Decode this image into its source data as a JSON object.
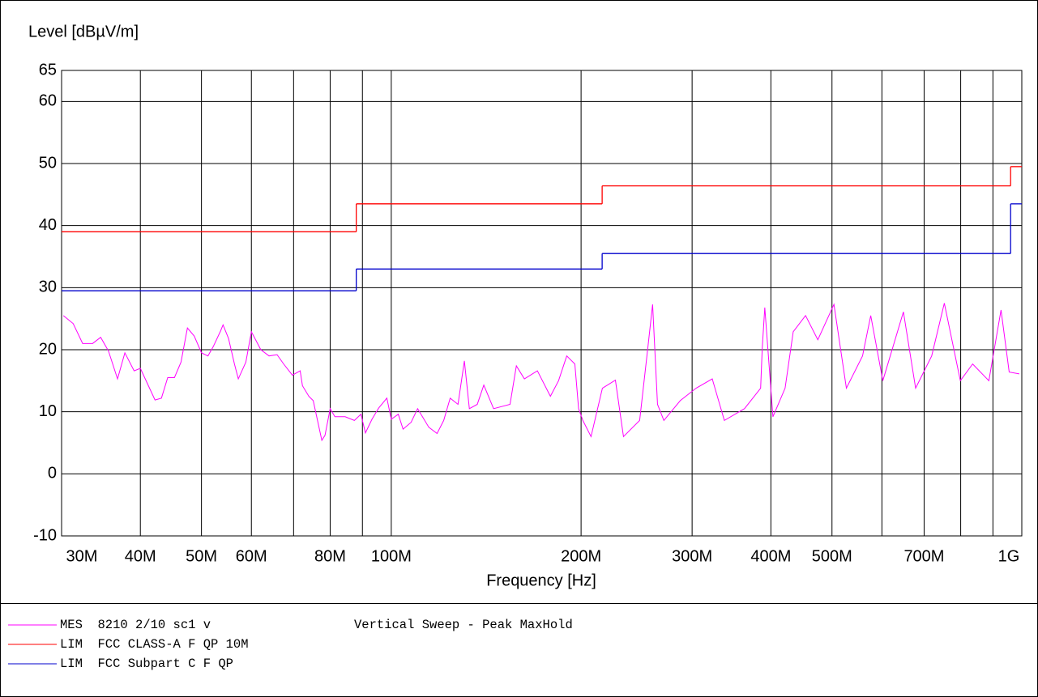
{
  "chart_data": {
    "type": "line",
    "ylabel": "Level [dBµV/m]",
    "xlabel": "Frequency [Hz]",
    "xscale": "log",
    "xlim": [
      30000000,
      1000000000
    ],
    "ylim": [
      -10,
      65
    ],
    "yticks": [
      -10,
      0,
      10,
      20,
      30,
      40,
      50,
      60,
      65
    ],
    "xticks": [
      {
        "value": 30000000,
        "label": "30M"
      },
      {
        "value": 40000000,
        "label": "40M"
      },
      {
        "value": 50000000,
        "label": "50M"
      },
      {
        "value": 60000000,
        "label": "60M"
      },
      {
        "value": 80000000,
        "label": "80M"
      },
      {
        "value": 100000000,
        "label": "100M"
      },
      {
        "value": 200000000,
        "label": "200M"
      },
      {
        "value": 300000000,
        "label": "300M"
      },
      {
        "value": 400000000,
        "label": "400M"
      },
      {
        "value": 500000000,
        "label": "500M"
      },
      {
        "value": 700000000,
        "label": "700M"
      },
      {
        "value": 1000000000,
        "label": "1G"
      }
    ],
    "xgrid": [
      70000000,
      90000000,
      600000000,
      800000000,
      900000000
    ],
    "grid": true,
    "note": "Vertical Sweep - Peak MaxHold",
    "series": [
      {
        "name": "MES  8210 2/10 sc1 v",
        "color": "#ff00ff",
        "style": "line",
        "x": [
          30200000.0,
          31300000.0,
          32400000.0,
          33600000.0,
          34600000.0,
          35600000.0,
          36800000.0,
          37800000.0,
          39100000.0,
          40000000.0,
          42200000.0,
          43200000.0,
          44200000.0,
          45300000.0,
          46400000.0,
          47500000.0,
          48700000.0,
          50000000.0,
          51200000.0,
          52200000.0,
          53600000.0,
          54100000.0,
          55200000.0,
          56400000.0,
          57200000.0,
          58800000.0,
          60000000.0,
          62100000.0,
          64000000.0,
          65900000.0,
          67500000.0,
          69700000.0,
          71700000.0,
          72300000.0,
          74000000.0,
          75200000.0,
          77600000.0,
          78500000.0,
          80000000.0,
          81400000.0,
          84500000.0,
          87400000.0,
          89500000.0,
          91000000.0,
          93200000.0,
          95500000.0,
          98400000.0,
          100000000.0,
          102600000.0,
          104400000.0,
          107500000.0,
          110100000.0,
          114700000.0,
          118200000.0,
          121100000.0,
          124000000.0,
          127600000.0,
          130600000.0,
          133000000.0,
          136900000.0,
          140200000.0,
          145300000.0,
          154300000.0,
          157900000.0,
          162600000.0,
          170500000.0,
          178800000.0,
          184200000.0,
          189800000.0,
          195500000.0,
          198200000.0,
          201300000.0,
          207400000.0,
          216200000.0,
          226700000.0,
          233500000.0,
          247700000.0,
          255200000.0,
          259700000.0,
          264400000.0,
          270600000.0,
          287300000.0,
          304400000.0,
          322900000.0,
          337500000.0,
          363200000.0,
          385300000.0,
          387600000.0,
          391200000.0,
          403000000.0,
          421300000.0,
          434000000.0,
          454000000.0,
          474800000.0,
          503600000.0,
          527000000.0,
          559000000.0,
          576000000.0,
          602000000.0,
          649000000.0,
          678600000.0,
          719600000.0,
          753600000.0,
          799000000.0,
          835700000.0,
          886700000.0,
          927000000.0,
          955000000.0,
          991000000.0
        ],
        "values": [
          25.5,
          24.2,
          21,
          21,
          22,
          19.8,
          15.3,
          19.5,
          16.6,
          17,
          11.9,
          12.2,
          15.5,
          15.5,
          18,
          23.5,
          22.2,
          19.5,
          19,
          20.5,
          23,
          24,
          21.8,
          17.7,
          15.3,
          18,
          22.9,
          20,
          19,
          19.2,
          17.7,
          15.9,
          16.6,
          14.2,
          12.5,
          11.8,
          5.4,
          6.2,
          10.5,
          9.2,
          9.2,
          8.6,
          9.6,
          6.6,
          8.8,
          10.6,
          12.2,
          8.8,
          9.6,
          7.2,
          8.3,
          10.5,
          7.5,
          6.5,
          8.6,
          12.2,
          11.2,
          18.2,
          10.5,
          11.2,
          14.3,
          10.5,
          11.2,
          17.4,
          15.3,
          16.6,
          12.5,
          15,
          19,
          17.7,
          10.5,
          8.6,
          6,
          13.8,
          15.1,
          6,
          8.6,
          20.3,
          27.3,
          11.2,
          8.6,
          11.8,
          13.8,
          15.3,
          8.6,
          10.5,
          13.8,
          20.3,
          26.8,
          9.2,
          13.8,
          22.9,
          25.5,
          21.6,
          27.3,
          13.8,
          19,
          25.5,
          15,
          26.1,
          13.8,
          19,
          27.5,
          15,
          17.7,
          15,
          26.4,
          16.4,
          16.1
        ]
      },
      {
        "name": "LIM  FCC CLASS-A F QP 10M",
        "color": "#ff0000",
        "style": "step",
        "x": [
          30000000,
          88000000,
          216000000,
          960000000
        ],
        "values": [
          39,
          43.5,
          46.4,
          49.5
        ]
      },
      {
        "name": "LIM  FCC Subpart C F QP",
        "color": "#0000cc",
        "style": "step",
        "x": [
          30000000,
          88000000,
          216000000,
          960000000
        ],
        "values": [
          29.5,
          33,
          35.5,
          43.5
        ]
      }
    ]
  }
}
